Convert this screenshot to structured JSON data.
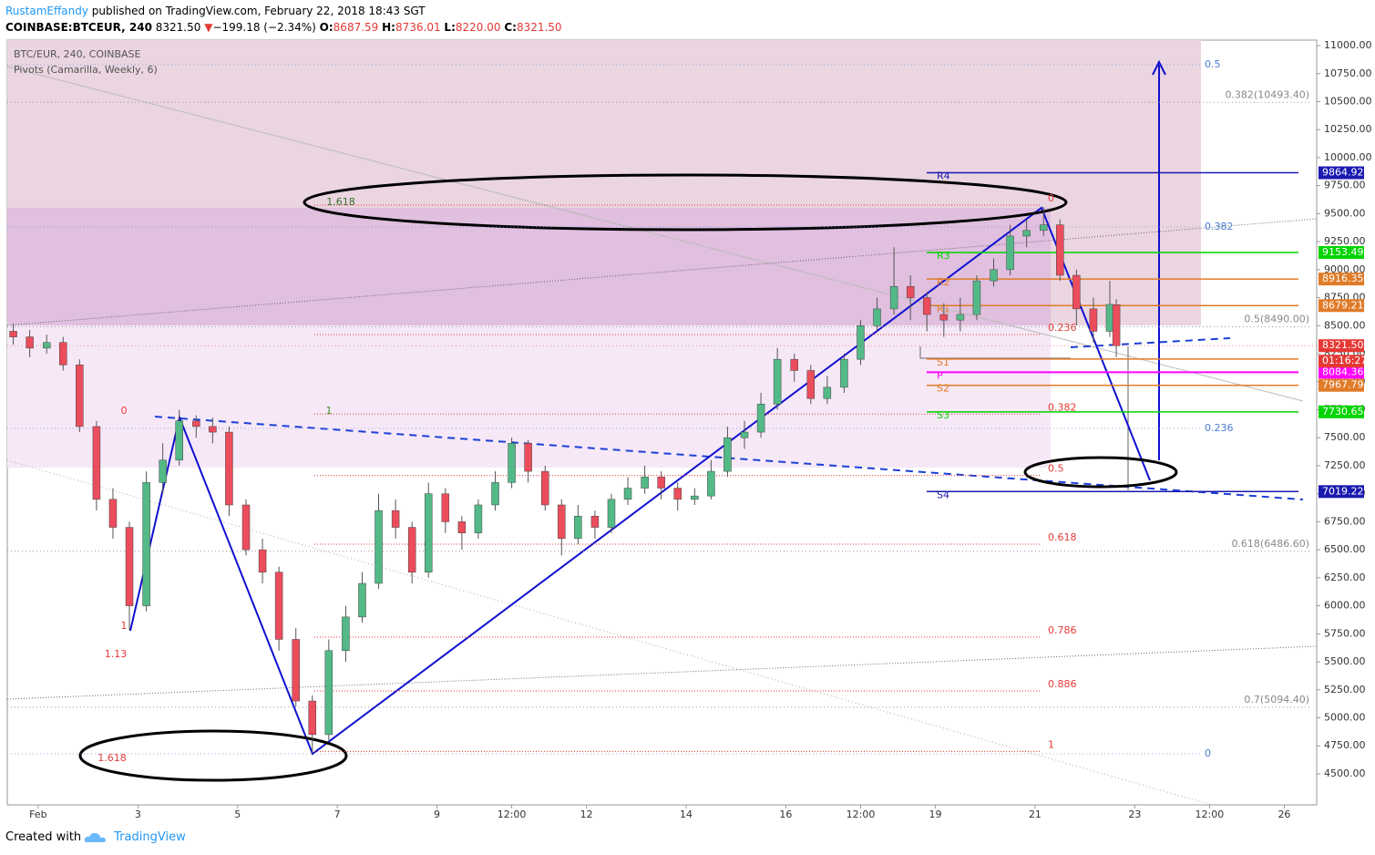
{
  "header": {
    "author": "RustamEffandy",
    "published": "published on TradingView.com, February 22, 2018 18:43 SGT",
    "symbol": "COINBASE:BTCEUR, 240",
    "last": "8321.50",
    "arrow": "▼",
    "change": "−199.18 (−2.34%)",
    "o_key": "O:",
    "o_val": "8687.59",
    "h_key": "H:",
    "h_val": "8736.01",
    "l_key": "L:",
    "l_val": "8220.00",
    "c_key": "C:",
    "c_val": "8321.50"
  },
  "footer": {
    "created": "Created with",
    "brand": "TradingView"
  },
  "chart_data": {
    "type": "candlestick",
    "title": "BTC/EUR, 240, COINBASE",
    "subtitle": "Pivots (Camarilla, Weekly, 6)",
    "up_color": "#53b987",
    "down_color": "#eb4d5c",
    "x": [
      0.5,
      0.83,
      1.17,
      1.5,
      1.83,
      2.17,
      2.5,
      2.83,
      3.17,
      3.5,
      3.83,
      4.17,
      4.5,
      4.83,
      5.17,
      5.5,
      5.83,
      6.17,
      6.5,
      6.83,
      7.17,
      7.5,
      7.83,
      8.17,
      8.5,
      8.83,
      9.17,
      9.5,
      9.83,
      10.17,
      10.5,
      10.83,
      11.17,
      11.5,
      11.83,
      12.17,
      12.5,
      12.83,
      13.17,
      13.5,
      13.83,
      14.17,
      14.5,
      14.83,
      15.17,
      15.5,
      15.83,
      16.17,
      16.5,
      16.83,
      17.17,
      17.5,
      17.83,
      18.17,
      18.5,
      18.83,
      19.17,
      19.5,
      19.83,
      20.17,
      20.5,
      20.83,
      21.17,
      21.5,
      21.83,
      22.17,
      22.5,
      22.63
    ],
    "open": [
      8450,
      8400,
      8300,
      8350,
      8150,
      7600,
      6950,
      6700,
      6000,
      7100,
      7300,
      7650,
      7600,
      7550,
      6900,
      6500,
      6300,
      5700,
      5150,
      4850,
      5600,
      5900,
      6200,
      6850,
      6700,
      6300,
      7000,
      6750,
      6650,
      6900,
      7100,
      7450,
      7200,
      6900,
      6600,
      6800,
      6700,
      6950,
      7050,
      7150,
      7050,
      6950,
      6980,
      7200,
      7500,
      7550,
      7800,
      8200,
      8100,
      7850,
      7950,
      8200,
      8500,
      8650,
      8850,
      8750,
      8600,
      8550,
      8600,
      8900,
      9000,
      9300,
      9350,
      9400,
      8950,
      8650,
      8450,
      8687.59
    ],
    "high": [
      8520,
      8460,
      8420,
      8400,
      8200,
      7650,
      7050,
      6750,
      7200,
      7450,
      7750,
      7700,
      7680,
      7600,
      6950,
      6600,
      6350,
      5800,
      5200,
      5700,
      6000,
      6300,
      7000,
      6950,
      6750,
      7100,
      7050,
      6800,
      6950,
      7200,
      7500,
      7480,
      7250,
      6950,
      6900,
      6850,
      7000,
      7150,
      7250,
      7200,
      7100,
      7050,
      7300,
      7600,
      7650,
      7900,
      8300,
      8250,
      8150,
      8050,
      8250,
      8550,
      8750,
      9200,
      8950,
      8800,
      8700,
      8750,
      8950,
      9100,
      9400,
      9450,
      9560,
      9450,
      9000,
      8750,
      8900,
      8736.01
    ],
    "low": [
      8330,
      8220,
      8250,
      8100,
      7550,
      6850,
      6600,
      5780,
      5950,
      7000,
      7250,
      7500,
      7450,
      6800,
      6450,
      6200,
      5600,
      5100,
      4680,
      4800,
      5500,
      5850,
      6150,
      6600,
      6200,
      6250,
      6650,
      6500,
      6600,
      6850,
      7050,
      7100,
      6850,
      6450,
      6550,
      6600,
      6650,
      6900,
      7000,
      6950,
      6850,
      6900,
      6950,
      7150,
      7400,
      7500,
      7750,
      8000,
      7800,
      7800,
      7900,
      8150,
      8450,
      8600,
      8550,
      8450,
      8400,
      8450,
      8550,
      8850,
      8950,
      9200,
      9300,
      8900,
      8500,
      8350,
      8400,
      8220
    ],
    "close": [
      8400,
      8300,
      8350,
      8150,
      7600,
      6950,
      6700,
      6000,
      7100,
      7300,
      7650,
      7600,
      7550,
      6900,
      6500,
      6300,
      5700,
      5150,
      4850,
      5600,
      5900,
      6200,
      6850,
      6700,
      6300,
      7000,
      6750,
      6650,
      6900,
      7100,
      7450,
      7200,
      6900,
      6600,
      6800,
      6700,
      6950,
      7050,
      7150,
      7050,
      6950,
      6980,
      7200,
      7500,
      7550,
      7800,
      8200,
      8100,
      7850,
      7950,
      8200,
      8500,
      8650,
      8850,
      8750,
      8600,
      8550,
      8600,
      8900,
      9000,
      9300,
      9350,
      9400,
      8950,
      8650,
      8450,
      8690,
      8321.5
    ],
    "xlim": [
      0.38,
      26.65
    ],
    "ylim": [
      4223,
      11049
    ],
    "xticks": [
      {
        "value": 1,
        "label": "Feb"
      },
      3,
      5,
      7,
      9,
      {
        "value": 10.5,
        "label": "12:00"
      },
      12,
      14,
      16,
      {
        "value": 17.5,
        "label": "12:00"
      },
      19,
      21,
      23,
      {
        "value": 24.5,
        "label": "12:00"
      },
      26
    ],
    "yticks": [
      {
        "value": 4500,
        "label": "4500.00"
      },
      {
        "value": 4750,
        "label": "4750.00"
      },
      {
        "value": 5000,
        "label": "5000.00"
      },
      {
        "value": 5250,
        "label": "5250.00"
      },
      {
        "value": 5500,
        "label": "5500.00"
      },
      {
        "value": 5750,
        "label": "5750.00"
      },
      {
        "value": 6000,
        "label": "6000.00"
      },
      {
        "value": 6250,
        "label": "6250.00"
      },
      {
        "value": 6500,
        "label": "6500.00"
      },
      {
        "value": 6750,
        "label": "6750.00"
      },
      {
        "value": 7000,
        "label": "7000.00"
      },
      {
        "value": 7250,
        "label": "7250.00"
      },
      {
        "value": 7500,
        "label": "7500.00"
      },
      {
        "value": 7750,
        "label": "7750.00"
      },
      {
        "value": 8000,
        "label": "8000.00"
      },
      {
        "value": 8250,
        "label": "8250.00"
      },
      {
        "value": 8500,
        "label": "8500.00"
      },
      {
        "value": 8750,
        "label": "8750.00"
      },
      {
        "value": 9000,
        "label": "9000.00"
      },
      {
        "value": 9250,
        "label": "9250.00"
      },
      {
        "value": 9500,
        "label": "9500.00"
      },
      {
        "value": 9750,
        "label": "9750.00"
      },
      {
        "value": 10000,
        "label": "10000.00"
      },
      {
        "value": 10250,
        "label": "10250.00"
      },
      {
        "value": 10500,
        "label": "10500.00"
      },
      {
        "value": 10750,
        "label": "10750.00"
      },
      {
        "value": 11000,
        "label": "11000.00"
      }
    ],
    "pivots": [
      {
        "name": "R4",
        "value": 9864.92,
        "color": "#1a1ab0"
      },
      {
        "name": "R3",
        "value": 9153.49,
        "color": "#00d400"
      },
      {
        "name": "R2",
        "value": 8916.35,
        "color": "#e07b28"
      },
      {
        "name": "R1",
        "value": 8679.21,
        "color": "#e07b28"
      },
      {
        "name": "P",
        "value": 8084.36,
        "color": "#ff00ff"
      },
      {
        "name": "S1",
        "value": 8202,
        "color": "#e07b28"
      },
      {
        "name": "S2",
        "value": 7967.79,
        "color": "#e07b28"
      },
      {
        "name": "S3",
        "value": 7730.65,
        "color": "#00d400"
      },
      {
        "name": "S4",
        "value": 7019.22,
        "color": "#1a1ab0"
      }
    ],
    "last_price": {
      "value": 8321.5,
      "value_label": "8321.50",
      "countdown": "01:16:27",
      "color": "#e53935"
    },
    "fib_levels": [
      {
        "label": "0",
        "value": 9576
      },
      {
        "label": "0.236",
        "value": 8421
      },
      {
        "label": "0.382",
        "value": 7711
      },
      {
        "label": "0.5",
        "value": 7163
      },
      {
        "label": "0.618",
        "value": 6550
      },
      {
        "label": "0.786",
        "value": 5720
      },
      {
        "label": "0.886",
        "value": 5240
      },
      {
        "label": "1",
        "value": 4700
      }
    ],
    "fib_right": [
      {
        "label": "0.5",
        "value": 10829
      },
      {
        "label": "0.382",
        "value": 9381
      },
      {
        "label": "0.236",
        "value": 7583
      },
      {
        "label": "0",
        "value": 4679
      }
    ],
    "fib_ext": [
      {
        "label": "0.382(10493.40)",
        "value": 10493.4
      },
      {
        "label": "0.5(8490.00)",
        "value": 8490
      },
      {
        "label": "0.618(6486.60)",
        "value": 6486.6
      },
      {
        "label": "0.7(5094.40)",
        "value": 5094.4
      }
    ],
    "annotations": [
      "0",
      "1",
      "1.618",
      "1",
      "1.13",
      "1.618"
    ]
  }
}
